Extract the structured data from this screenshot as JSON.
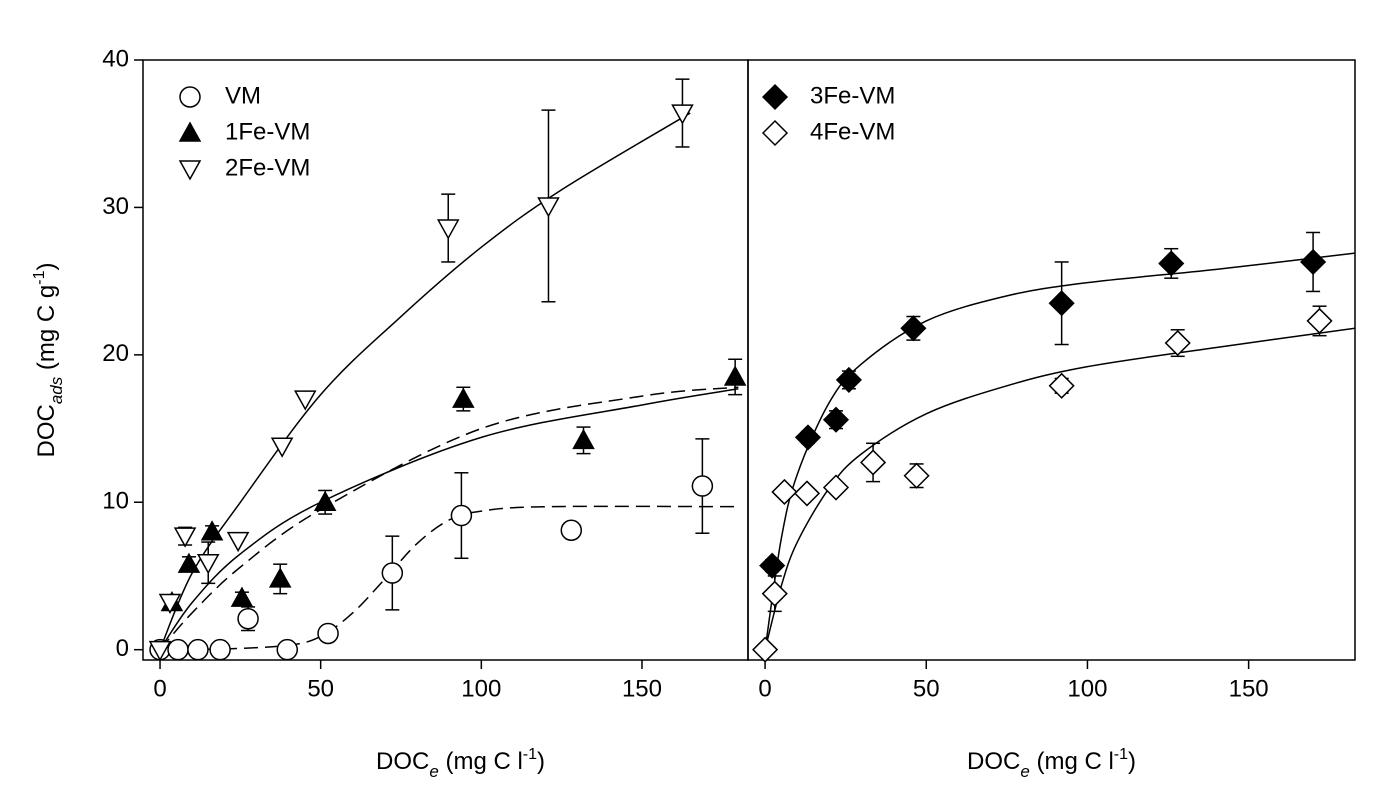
{
  "chart_data": [
    {
      "type": "scatter",
      "ylabel": [
        "DOC",
        "ads",
        " (mg C g",
        "-1",
        ")"
      ],
      "xlabel": [
        "DOC",
        "e",
        " (mg C l",
        "-1",
        ")"
      ],
      "xlim": [
        -5.3,
        183
      ],
      "ylim": [
        -0.7,
        40
      ],
      "xticks": [
        0,
        50,
        100,
        150
      ],
      "yticks": [
        0,
        10,
        20,
        30,
        40
      ],
      "legend": "upper left",
      "series": [
        {
          "name": "VM",
          "marker": "circle",
          "filled": false,
          "color": "#000000",
          "x": [
            0,
            5.6,
            11.8,
            18.7,
            27.4,
            39.6,
            52.3,
            72.3,
            93.8,
            128,
            168.8
          ],
          "values": [
            0,
            0,
            0,
            0,
            2.1,
            0,
            1.1,
            5.2,
            9.1,
            8.1,
            11.1
          ],
          "errors": [
            null,
            null,
            null,
            null,
            0.8,
            null,
            null,
            2.5,
            2.9,
            0.5,
            3.2
          ]
        },
        {
          "name": "1Fe-VM",
          "marker": "triangle-up",
          "filled": true,
          "color": "#000000",
          "x": [
            3.7,
            9,
            16.2,
            25.5,
            37.4,
            51.4,
            94.4,
            131.8,
            179
          ],
          "values": [
            3.2,
            5.8,
            8.0,
            3.5,
            4.8,
            10.0,
            17.0,
            14.2,
            18.5
          ],
          "errors": [
            null,
            0.5,
            0.4,
            0.4,
            1.0,
            0.8,
            0.8,
            0.9,
            1.2
          ]
        },
        {
          "name": "2Fe-VM",
          "marker": "triangle-down",
          "filled": false,
          "color": "#000000",
          "x": [
            0,
            3.1,
            7.8,
            15,
            24.3,
            38,
            45.2,
            89.7,
            120.9,
            162.6
          ],
          "values": [
            0,
            3.2,
            7.7,
            5.9,
            7.4,
            13.8,
            17.0,
            28.6,
            30.1,
            36.4
          ],
          "errors": [
            null,
            null,
            0.6,
            1.4,
            null,
            null,
            null,
            2.3,
            6.5,
            2.3
          ]
        }
      ],
      "fits": [
        {
          "line": "dashed",
          "x": [
            0,
            20,
            40,
            50,
            60,
            70,
            80,
            90,
            100,
            120,
            180
          ],
          "values": [
            0,
            0.05,
            0.3,
            0.9,
            2.5,
            4.8,
            7.2,
            8.8,
            9.4,
            9.7,
            9.7
          ]
        },
        {
          "line": "dashed",
          "x": [
            0,
            10,
            25,
            50,
            100,
            150,
            180
          ],
          "values": [
            0,
            2.5,
            5.6,
            9.5,
            15,
            17.2,
            17.8
          ]
        },
        {
          "line": "solid",
          "x": [
            0,
            10,
            25,
            50,
            100,
            150,
            180
          ],
          "values": [
            0,
            3.2,
            6.5,
            10.0,
            14.4,
            16.6,
            17.7
          ]
        },
        {
          "line": "solid",
          "x": [
            0,
            10,
            25,
            50,
            75,
            100,
            125,
            165
          ],
          "values": [
            0,
            5.2,
            10,
            17.3,
            22.6,
            27.3,
            31.2,
            36.4
          ]
        }
      ]
    },
    {
      "type": "scatter",
      "xlabel": [
        "DOC",
        "e",
        " (mg C l",
        "-1",
        ")"
      ],
      "xlim": [
        -5.3,
        183
      ],
      "ylim": [
        -0.7,
        40
      ],
      "xticks": [
        0,
        50,
        100,
        150
      ],
      "legend": "upper left",
      "series": [
        {
          "name": "3Fe-VM",
          "marker": "diamond",
          "filled": true,
          "color": "#000000",
          "x": [
            2.2,
            13.3,
            22,
            26,
            46,
            92,
            126,
            170
          ],
          "values": [
            5.7,
            14.4,
            15.6,
            18.3,
            21.8,
            23.5,
            26.2,
            26.3
          ],
          "errors": [
            0.4,
            0.4,
            0.6,
            0.6,
            0.8,
            2.8,
            1.0,
            2.0
          ]
        },
        {
          "name": "4Fe-VM",
          "marker": "diamond",
          "filled": false,
          "color": "#000000",
          "x": [
            0,
            3,
            6,
            13,
            22,
            33.5,
            47,
            92,
            128,
            172
          ],
          "values": [
            0,
            3.8,
            10.7,
            10.6,
            11.0,
            12.7,
            11.8,
            17.9,
            20.8,
            22.3
          ],
          "errors": [
            null,
            1.2,
            null,
            null,
            null,
            1.3,
            0.8,
            0.5,
            0.9,
            1.0
          ]
        }
      ],
      "fits": [
        {
          "line": "solid",
          "x": [
            0,
            5,
            10,
            20,
            30,
            50,
            75,
            100,
            140,
            183
          ],
          "values": [
            0,
            7.5,
            11.9,
            16.8,
            19.4,
            22.3,
            24.0,
            24.9,
            25.8,
            26.9
          ]
        },
        {
          "line": "solid",
          "x": [
            0,
            5,
            10,
            20,
            30,
            50,
            75,
            100,
            140,
            183
          ],
          "values": [
            0,
            4.3,
            7.3,
            11.0,
            13.3,
            16.0,
            17.9,
            19.2,
            20.5,
            21.8
          ]
        }
      ]
    }
  ]
}
